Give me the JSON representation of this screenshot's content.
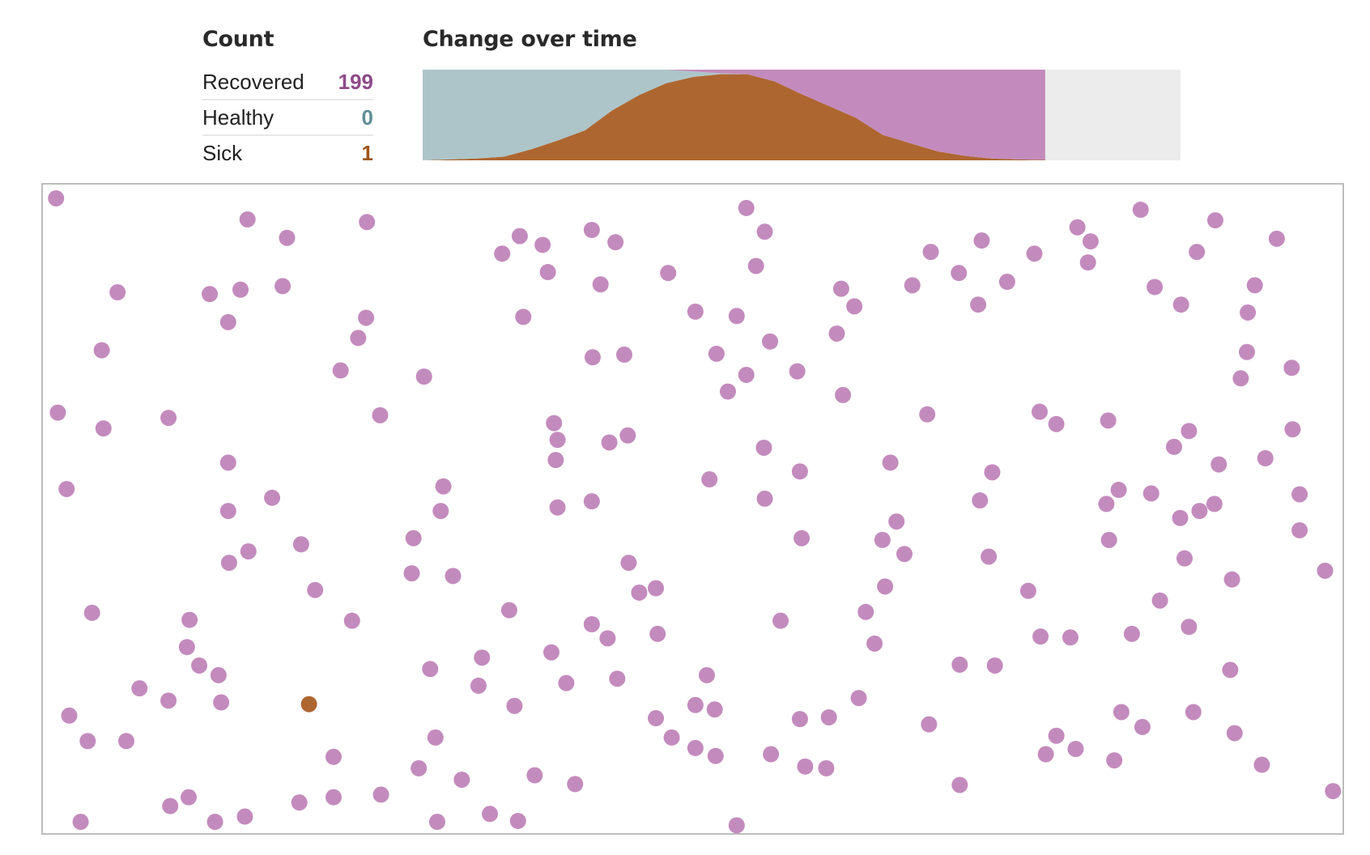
{
  "count": {
    "title": "Count",
    "rows": [
      {
        "label": "Recovered",
        "value": "199",
        "color": "#8e4a8a"
      },
      {
        "label": "Healthy",
        "value": "0",
        "color": "#5f8f99"
      },
      {
        "label": "Sick",
        "value": "1",
        "color": "#a0561c"
      }
    ]
  },
  "chart_data": {
    "type": "area",
    "title": "Change over time",
    "stacked": true,
    "normalized": true,
    "xlim": [
      0,
      28
    ],
    "ylim": [
      0,
      1
    ],
    "x": [
      0,
      1,
      2,
      3,
      4,
      5,
      6,
      7,
      8,
      9,
      10,
      11,
      12,
      13,
      14,
      15,
      16,
      17,
      18,
      19,
      20,
      21,
      22,
      23
    ],
    "series": [
      {
        "key": "sick",
        "color": "#ae6630",
        "values": [
          0,
          0.01,
          0.02,
          0.04,
          0.12,
          0.22,
          0.33,
          0.55,
          0.72,
          0.85,
          0.92,
          0.95,
          0.95,
          0.87,
          0.73,
          0.6,
          0.47,
          0.28,
          0.19,
          0.1,
          0.05,
          0.02,
          0.01,
          0.005
        ]
      },
      {
        "key": "healthy",
        "color": "#adc5c9",
        "values": [
          1,
          0.99,
          0.98,
          0.96,
          0.88,
          0.78,
          0.67,
          0.45,
          0.28,
          0.15,
          0.06,
          0.01,
          0,
          0,
          0,
          0,
          0,
          0,
          0,
          0,
          0,
          0,
          0,
          0
        ]
      },
      {
        "key": "recovered",
        "color": "#c38bbd",
        "values": [
          0,
          0,
          0,
          0,
          0,
          0,
          0,
          0,
          0,
          0,
          0.02,
          0.04,
          0.05,
          0.13,
          0.27,
          0.4,
          0.53,
          0.72,
          0.81,
          0.9,
          0.95,
          0.98,
          0.99,
          0.995
        ]
      }
    ],
    "remaining_color": "#ececec",
    "grid": false
  },
  "simulation": {
    "population": 200,
    "status_colors": {
      "recovered": "#c38bbd",
      "sick": "#ae6630",
      "healthy": "#adc5c9"
    },
    "border_color": "#bdbdbd"
  }
}
